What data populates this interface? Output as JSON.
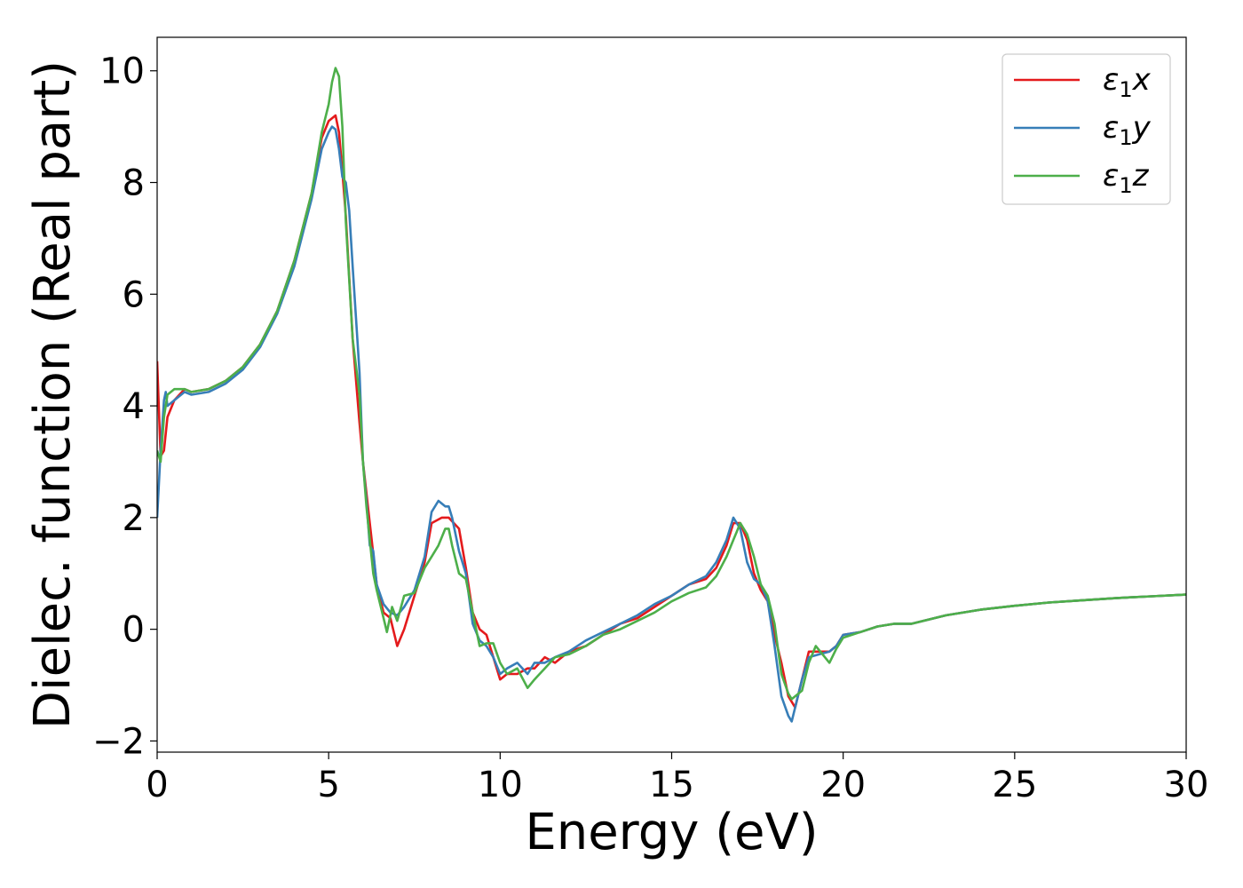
{
  "chart_data": {
    "type": "line",
    "title": "",
    "xlabel": "Energy (eV)",
    "ylabel": "Dielec. function (Real part)",
    "xlim": [
      0,
      30
    ],
    "ylim": [
      -2.2,
      10.6
    ],
    "xticks": [
      0,
      5,
      10,
      15,
      20,
      25,
      30
    ],
    "yticks": [
      -2,
      0,
      2,
      4,
      6,
      8,
      10
    ],
    "xtick_labels": [
      "0",
      "5",
      "10",
      "15",
      "20",
      "25",
      "30"
    ],
    "ytick_labels": [
      "−2",
      "0",
      "2",
      "4",
      "6",
      "8",
      "10"
    ],
    "grid": false,
    "legend_position": "top-right",
    "series": [
      {
        "name": "ε₁x",
        "legend_base": "ε",
        "legend_sub": "1",
        "legend_var": "x",
        "color": "#e41a1c",
        "x": [
          0.0,
          0.1,
          0.2,
          0.3,
          0.5,
          0.8,
          1.0,
          1.5,
          2.0,
          2.5,
          3.0,
          3.5,
          4.0,
          4.5,
          4.8,
          5.0,
          5.2,
          5.3,
          5.4,
          5.5,
          5.7,
          5.9,
          6.0,
          6.2,
          6.4,
          6.6,
          6.8,
          7.0,
          7.2,
          7.5,
          7.8,
          8.0,
          8.3,
          8.5,
          8.8,
          9.0,
          9.2,
          9.4,
          9.6,
          9.8,
          10.0,
          10.2,
          10.5,
          10.8,
          11.0,
          11.3,
          11.6,
          12.0,
          12.5,
          13.0,
          13.5,
          14.0,
          14.5,
          15.0,
          15.5,
          16.0,
          16.3,
          16.6,
          16.8,
          17.0,
          17.2,
          17.4,
          17.6,
          17.8,
          18.0,
          18.2,
          18.4,
          18.6,
          18.8,
          19.0,
          19.3,
          19.6,
          19.8,
          20.0,
          20.5,
          21.0,
          21.5,
          22.0,
          23.0,
          24.0,
          25.0,
          26.0,
          27.0,
          28.0,
          29.0,
          30.0
        ],
        "y": [
          4.8,
          3.1,
          3.2,
          3.8,
          4.1,
          4.3,
          4.25,
          4.3,
          4.45,
          4.7,
          5.1,
          5.7,
          6.6,
          7.8,
          8.8,
          9.1,
          9.2,
          8.9,
          8.2,
          7.4,
          5.2,
          3.7,
          3.0,
          1.9,
          0.8,
          0.3,
          0.2,
          -0.3,
          0.0,
          0.6,
          1.2,
          1.9,
          2.0,
          2.0,
          1.8,
          1.1,
          0.3,
          0.0,
          -0.1,
          -0.5,
          -0.9,
          -0.8,
          -0.8,
          -0.7,
          -0.7,
          -0.5,
          -0.6,
          -0.4,
          -0.3,
          -0.1,
          0.1,
          0.2,
          0.4,
          0.6,
          0.8,
          0.9,
          1.1,
          1.5,
          1.9,
          1.9,
          1.6,
          1.0,
          0.7,
          0.5,
          -0.1,
          -0.6,
          -1.2,
          -1.4,
          -0.9,
          -0.4,
          -0.4,
          -0.4,
          -0.3,
          -0.1,
          -0.05,
          0.05,
          0.1,
          0.1,
          0.25,
          0.35,
          0.42,
          0.48,
          0.52,
          0.56,
          0.59,
          0.62
        ]
      },
      {
        "name": "ε₁y",
        "legend_base": "ε",
        "legend_sub": "1",
        "legend_var": "y",
        "color": "#377eb8",
        "x": [
          0.0,
          0.1,
          0.2,
          0.25,
          0.3,
          0.5,
          0.8,
          1.0,
          1.5,
          2.0,
          2.5,
          3.0,
          3.5,
          4.0,
          4.5,
          4.8,
          5.0,
          5.1,
          5.2,
          5.3,
          5.4,
          5.5,
          5.6,
          5.7,
          5.9,
          6.0,
          6.1,
          6.2,
          6.3,
          6.4,
          6.6,
          6.8,
          7.0,
          7.2,
          7.5,
          7.8,
          8.0,
          8.2,
          8.4,
          8.5,
          8.6,
          8.8,
          9.0,
          9.2,
          9.4,
          9.6,
          9.8,
          10.0,
          10.2,
          10.5,
          10.8,
          11.0,
          11.3,
          11.6,
          12.0,
          12.5,
          13.0,
          13.5,
          14.0,
          14.5,
          15.0,
          15.5,
          16.0,
          16.3,
          16.6,
          16.8,
          17.0,
          17.2,
          17.4,
          17.6,
          17.8,
          18.0,
          18.2,
          18.4,
          18.5,
          18.6,
          18.8,
          19.0,
          19.3,
          19.6,
          19.8,
          20.0,
          20.5,
          21.0,
          21.5,
          22.0,
          23.0,
          24.0,
          25.0,
          26.0,
          27.0,
          28.0,
          29.0,
          30.0
        ],
        "y": [
          2.0,
          3.2,
          4.1,
          4.25,
          4.0,
          4.1,
          4.25,
          4.2,
          4.25,
          4.4,
          4.65,
          5.05,
          5.65,
          6.5,
          7.7,
          8.6,
          8.9,
          9.0,
          8.95,
          8.6,
          8.1,
          8.0,
          7.5,
          6.5,
          4.6,
          3.0,
          2.3,
          1.5,
          1.4,
          0.8,
          0.45,
          0.3,
          0.25,
          0.4,
          0.7,
          1.3,
          2.1,
          2.3,
          2.2,
          2.2,
          2.0,
          1.4,
          1.0,
          0.1,
          -0.2,
          -0.3,
          -0.5,
          -0.8,
          -0.7,
          -0.6,
          -0.8,
          -0.6,
          -0.6,
          -0.5,
          -0.4,
          -0.2,
          -0.05,
          0.1,
          0.25,
          0.45,
          0.6,
          0.8,
          0.95,
          1.2,
          1.6,
          2.0,
          1.8,
          1.2,
          0.9,
          0.8,
          0.5,
          -0.3,
          -1.2,
          -1.55,
          -1.65,
          -1.4,
          -0.9,
          -0.5,
          -0.45,
          -0.4,
          -0.3,
          -0.1,
          -0.05,
          0.05,
          0.1,
          0.1,
          0.25,
          0.35,
          0.42,
          0.48,
          0.52,
          0.56,
          0.59,
          0.62
        ]
      },
      {
        "name": "ε₁z",
        "legend_base": "ε",
        "legend_sub": "1",
        "legend_var": "z",
        "color": "#4daf4a",
        "x": [
          0.0,
          0.1,
          0.2,
          0.3,
          0.5,
          0.8,
          1.0,
          1.5,
          2.0,
          2.5,
          3.0,
          3.5,
          4.0,
          4.5,
          4.8,
          5.0,
          5.1,
          5.2,
          5.3,
          5.4,
          5.5,
          5.7,
          5.9,
          6.0,
          6.1,
          6.2,
          6.3,
          6.4,
          6.6,
          6.7,
          6.85,
          7.0,
          7.2,
          7.5,
          7.8,
          8.0,
          8.2,
          8.4,
          8.5,
          8.6,
          8.8,
          9.0,
          9.2,
          9.4,
          9.6,
          9.8,
          10.0,
          10.2,
          10.5,
          10.8,
          11.0,
          11.3,
          11.6,
          12.0,
          12.5,
          13.0,
          13.5,
          14.0,
          14.5,
          15.0,
          15.5,
          16.0,
          16.3,
          16.6,
          16.8,
          16.9,
          17.0,
          17.2,
          17.4,
          17.6,
          17.8,
          18.0,
          18.2,
          18.4,
          18.5,
          18.6,
          18.8,
          19.0,
          19.2,
          19.4,
          19.6,
          19.8,
          20.0,
          20.5,
          21.0,
          21.5,
          22.0,
          23.0,
          24.0,
          25.0,
          26.0,
          27.0,
          28.0,
          29.0,
          30.0
        ],
        "y": [
          3.2,
          3.0,
          3.8,
          4.2,
          4.3,
          4.3,
          4.25,
          4.3,
          4.45,
          4.7,
          5.1,
          5.7,
          6.6,
          7.8,
          8.9,
          9.4,
          9.8,
          10.05,
          9.9,
          9.0,
          7.3,
          5.2,
          4.2,
          3.0,
          2.2,
          1.6,
          1.0,
          0.7,
          0.2,
          -0.05,
          0.4,
          0.15,
          0.6,
          0.65,
          1.1,
          1.3,
          1.5,
          1.8,
          1.8,
          1.5,
          1.0,
          0.9,
          0.3,
          -0.3,
          -0.25,
          -0.25,
          -0.6,
          -0.8,
          -0.7,
          -1.05,
          -0.9,
          -0.7,
          -0.5,
          -0.45,
          -0.3,
          -0.1,
          0.0,
          0.15,
          0.3,
          0.5,
          0.65,
          0.75,
          0.95,
          1.3,
          1.6,
          1.75,
          1.9,
          1.7,
          1.3,
          0.8,
          0.6,
          0.1,
          -0.8,
          -1.15,
          -1.25,
          -1.2,
          -1.1,
          -0.6,
          -0.3,
          -0.45,
          -0.6,
          -0.35,
          -0.15,
          -0.05,
          0.05,
          0.1,
          0.1,
          0.25,
          0.35,
          0.42,
          0.48,
          0.52,
          0.56,
          0.59,
          0.62
        ]
      }
    ]
  }
}
